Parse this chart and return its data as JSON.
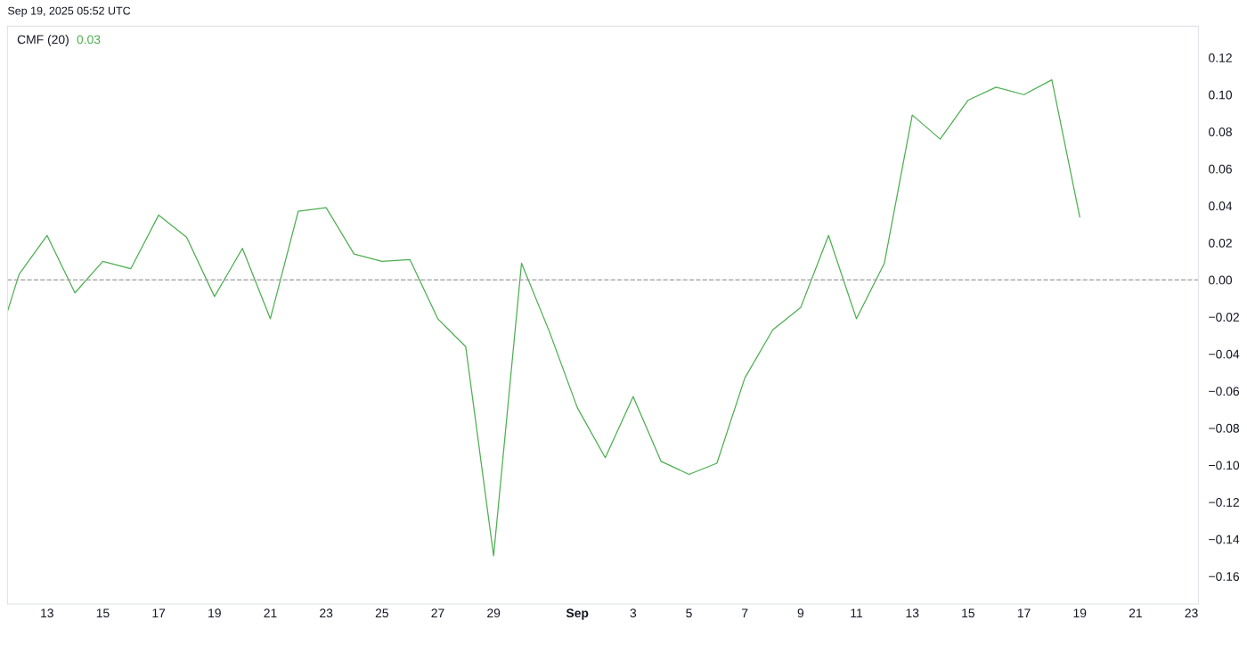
{
  "chart_data": {
    "type": "line",
    "title": "CMF (20)",
    "subtitle": "0.03",
    "annotations": [
      "Sep 19, 2025 05:52 UTC"
    ],
    "x": [
      "2025-08-11T14:00",
      "2025-08-12",
      "2025-08-13",
      "2025-08-14",
      "2025-08-15",
      "2025-08-16",
      "2025-08-17",
      "2025-08-18",
      "2025-08-19",
      "2025-08-20",
      "2025-08-21",
      "2025-08-22",
      "2025-08-23",
      "2025-08-24",
      "2025-08-25",
      "2025-08-26",
      "2025-08-27",
      "2025-08-28",
      "2025-08-29",
      "2025-08-30",
      "2025-08-31",
      "2025-09-01",
      "2025-09-02",
      "2025-09-03",
      "2025-09-04",
      "2025-09-05",
      "2025-09-06",
      "2025-09-07",
      "2025-09-08",
      "2025-09-09",
      "2025-09-10",
      "2025-09-11",
      "2025-09-12",
      "2025-09-13",
      "2025-09-14",
      "2025-09-15",
      "2025-09-16",
      "2025-09-17",
      "2025-09-18",
      "2025-09-19"
    ],
    "series": [
      {
        "color": "#4caf50",
        "values": [
          -0.017,
          0.003,
          0.024,
          -0.007,
          0.01,
          0.006,
          0.035,
          0.023,
          -0.009,
          0.017,
          -0.021,
          0.037,
          0.039,
          0.014,
          0.01,
          0.011,
          -0.021,
          -0.036,
          -0.149,
          0.009,
          -0.028,
          -0.069,
          -0.096,
          -0.063,
          -0.098,
          -0.105,
          -0.099,
          -0.053,
          -0.027,
          -0.015,
          0.024,
          -0.021,
          0.009,
          0.089,
          0.076,
          0.097,
          0.104,
          0.1,
          0.108,
          0.034
        ]
      }
    ],
    "xlim": [
      "2025-08-11T14:00",
      "2025-09-23T06:00"
    ],
    "xticks": [
      {
        "value": "2025-08-13",
        "label": "13"
      },
      {
        "value": "2025-08-15",
        "label": "15"
      },
      {
        "value": "2025-08-17",
        "label": "17"
      },
      {
        "value": "2025-08-19",
        "label": "19"
      },
      {
        "value": "2025-08-21",
        "label": "21"
      },
      {
        "value": "2025-08-23",
        "label": "23"
      },
      {
        "value": "2025-08-25",
        "label": "25"
      },
      {
        "value": "2025-08-27",
        "label": "27"
      },
      {
        "value": "2025-08-29",
        "label": "29"
      },
      {
        "value": "2025-09-01",
        "label": "Sep"
      },
      {
        "value": "2025-09-03",
        "label": "3"
      },
      {
        "value": "2025-09-05",
        "label": "5"
      },
      {
        "value": "2025-09-07",
        "label": "7"
      },
      {
        "value": "2025-09-09",
        "label": "9"
      },
      {
        "value": "2025-09-11",
        "label": "11"
      },
      {
        "value": "2025-09-13",
        "label": "13"
      },
      {
        "value": "2025-09-15",
        "label": "15"
      },
      {
        "value": "2025-09-17",
        "label": "17"
      },
      {
        "value": "2025-09-19",
        "label": "19"
      },
      {
        "value": "2025-09-21",
        "label": "21"
      },
      {
        "value": "2025-09-23",
        "label": "23"
      }
    ],
    "ylim": [
      -0.175,
      0.137
    ],
    "yticks": [
      {
        "value": 0.12,
        "label": "0.12"
      },
      {
        "value": 0.1,
        "label": "0.10"
      },
      {
        "value": 0.08,
        "label": "0.08"
      },
      {
        "value": 0.06,
        "label": "0.06"
      },
      {
        "value": 0.04,
        "label": "0.04"
      },
      {
        "value": 0.02,
        "label": "0.02"
      },
      {
        "value": 0,
        "label": "0.00"
      },
      {
        "value": -0.02,
        "label": "−0.02"
      },
      {
        "value": -0.04,
        "label": "−0.04"
      },
      {
        "value": -0.06,
        "label": "−0.06"
      },
      {
        "value": -0.08,
        "label": "−0.08"
      },
      {
        "value": -0.1,
        "label": "−0.10"
      },
      {
        "value": -0.12,
        "label": "−0.12"
      },
      {
        "value": -0.14,
        "label": "−0.14"
      },
      {
        "value": -0.16,
        "label": "−0.16"
      }
    ],
    "ref_lines": [
      {
        "axis": "y",
        "value": 0,
        "color": "#9e9e9e",
        "line_style": "dashed"
      }
    ],
    "grid": false,
    "legend": false,
    "marker": "none",
    "line_style": "solid"
  }
}
